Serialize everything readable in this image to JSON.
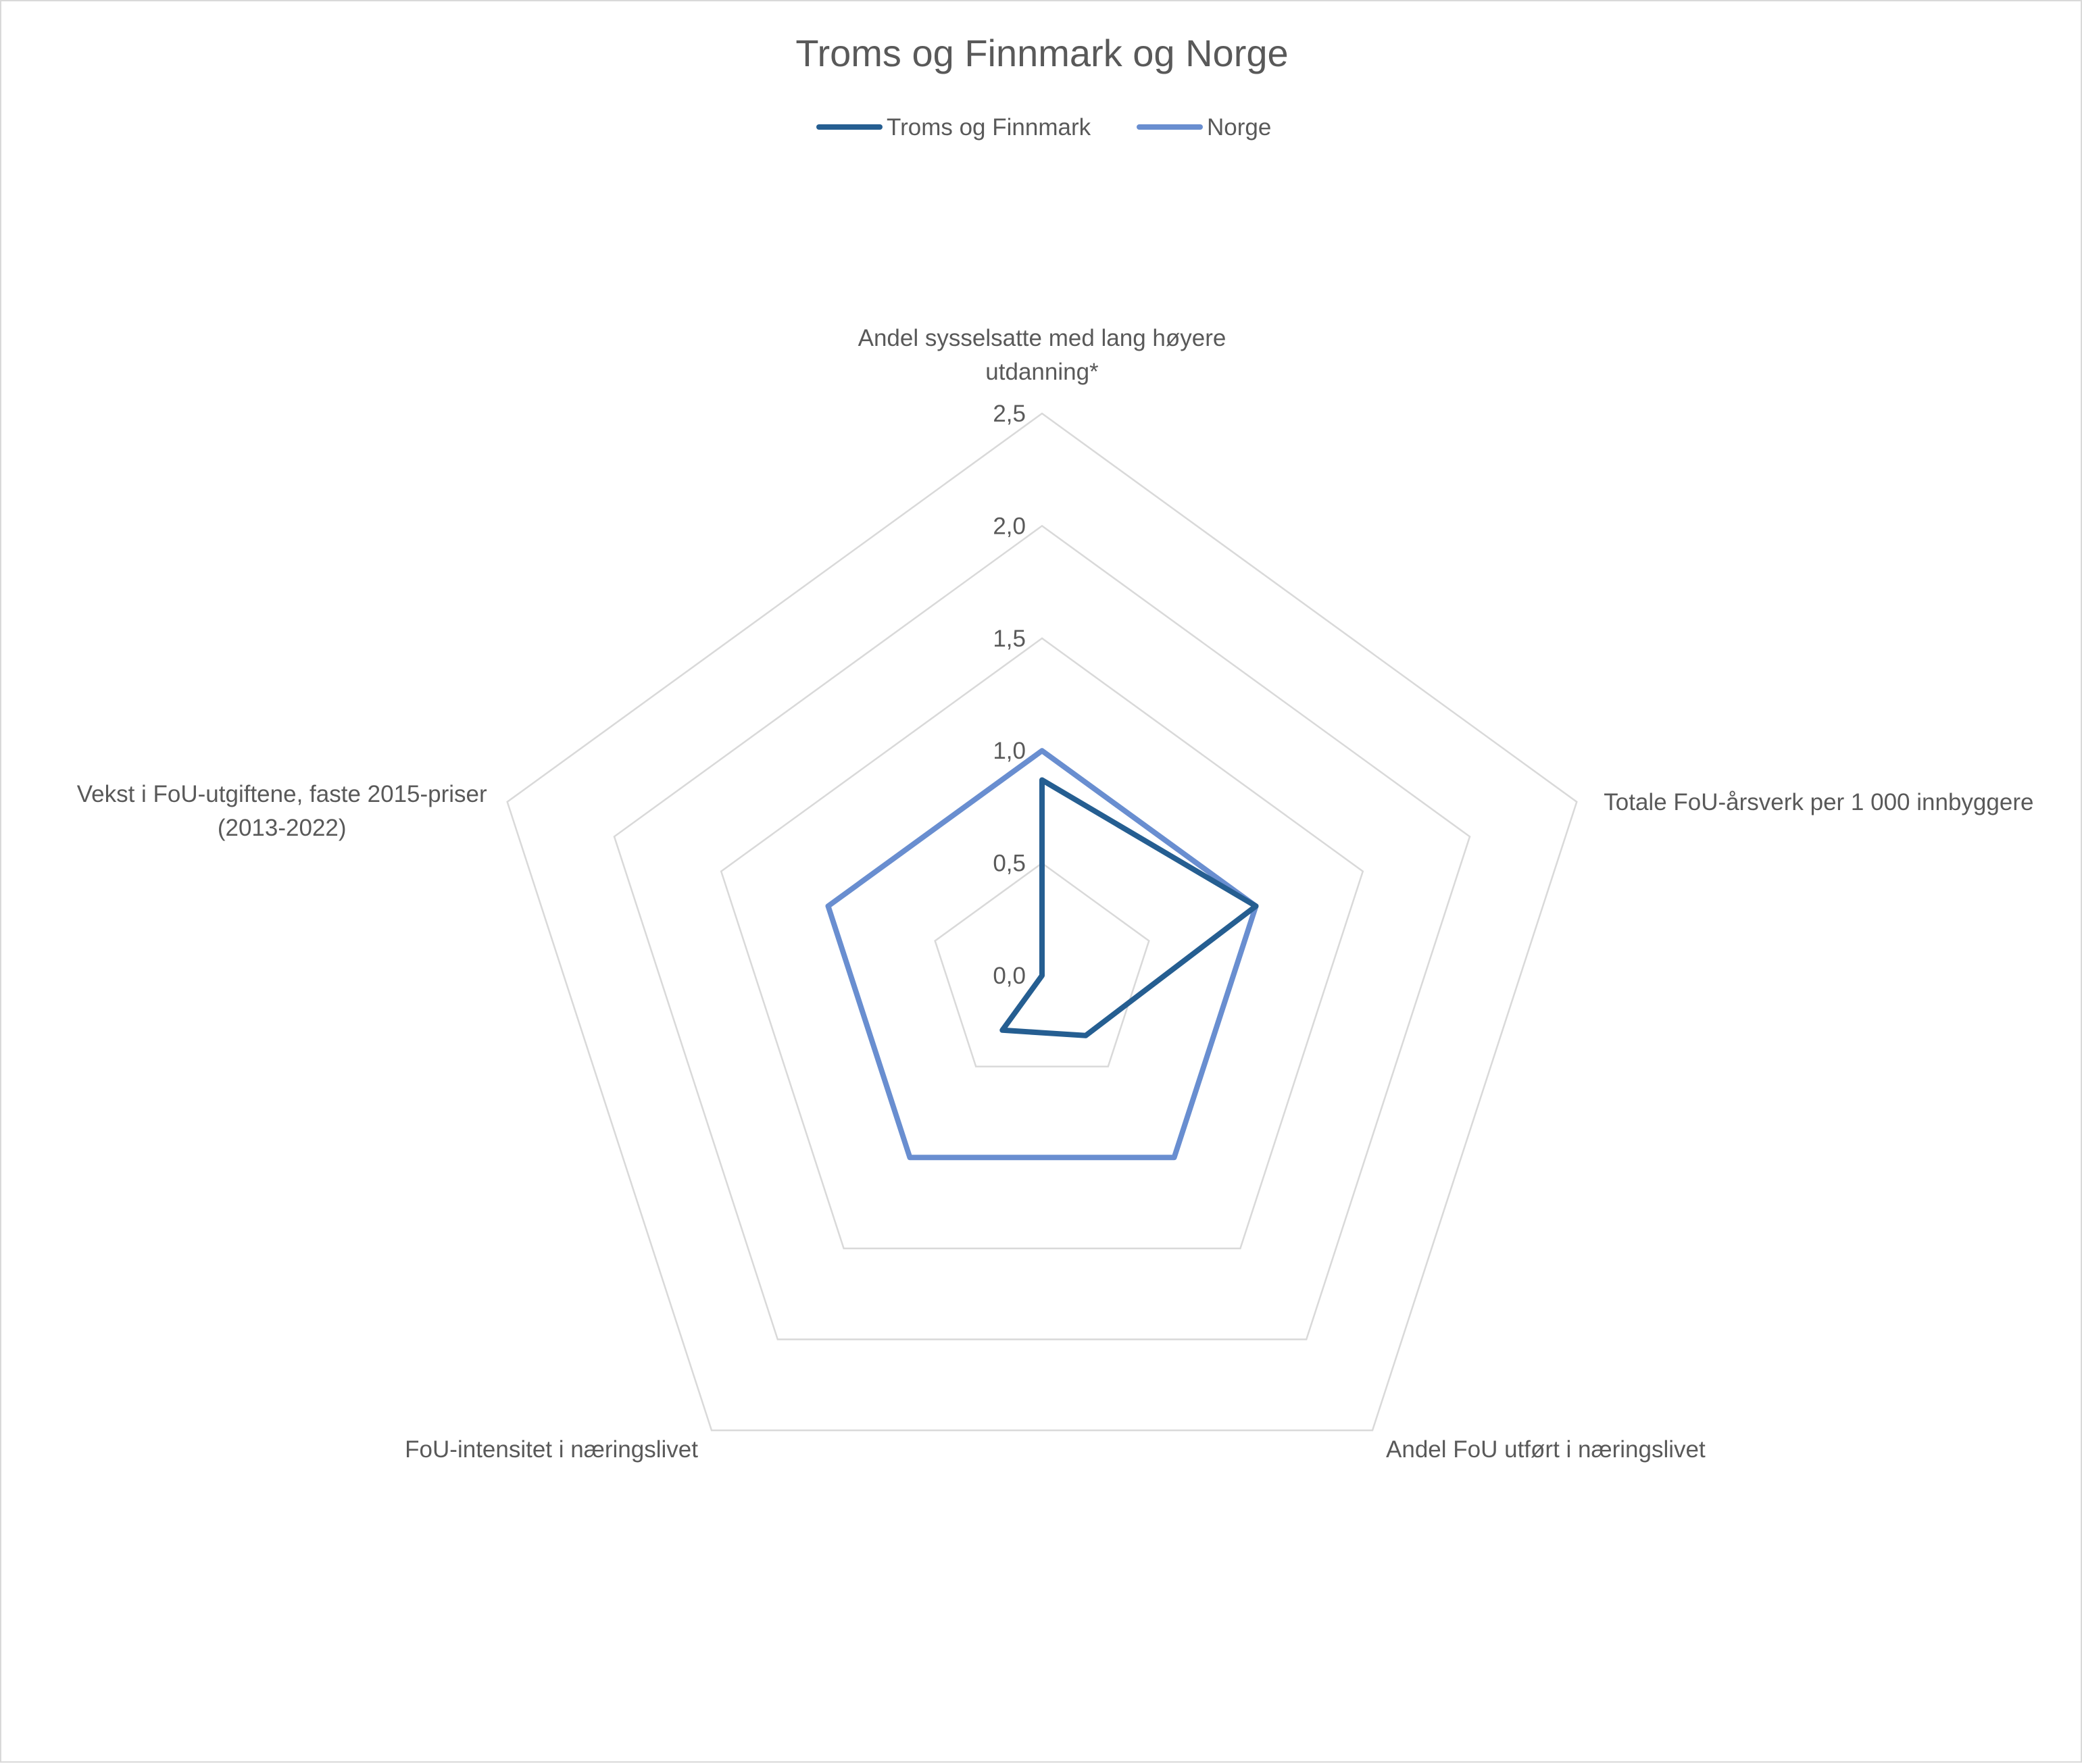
{
  "chart_data": {
    "type": "radar",
    "title": "Troms og Finnmark og Norge",
    "axes": [
      [
        "Andel sysselsatte med lang høyere",
        "utdanning*"
      ],
      [
        "Totale FoU-årsverk per 1 000 innbyggere"
      ],
      [
        "Andel FoU utført i næringslivet"
      ],
      [
        "FoU-intensitet i næringslivet"
      ],
      [
        "Vekst i FoU-utgiftene, faste 2015-priser",
        "(2013-2022)"
      ]
    ],
    "rlim": [
      0,
      2.5
    ],
    "ticks": [
      "0,0",
      "0,5",
      "1,0",
      "1,5",
      "2,0",
      "2,5"
    ],
    "grid": true,
    "legend_position": "top",
    "series": [
      {
        "name": "Troms og Finnmark",
        "color": "#255e91",
        "values": [
          0.87,
          1.0,
          0.33,
          0.3,
          0.0
        ]
      },
      {
        "name": "Norge",
        "color": "#698ed0",
        "values": [
          1.0,
          1.0,
          1.0,
          1.0,
          1.0
        ]
      }
    ]
  }
}
